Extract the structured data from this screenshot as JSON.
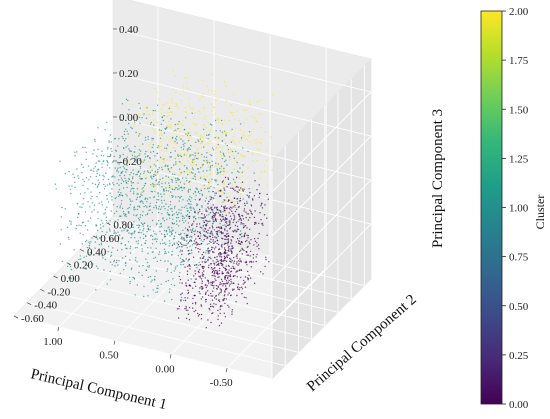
{
  "chart_data": {
    "type": "scatter",
    "projection": "3d",
    "title": "",
    "xlabel": "Principal Component 1",
    "ylabel": "Principal Component 2",
    "zlabel": "Principal Component 3",
    "x_ticks": [
      "-0.50",
      "0.00",
      "0.50",
      "1.00"
    ],
    "y_ticks": [
      "-0.60",
      "-0.40",
      "-0.20",
      "0.00",
      "0.20",
      "0.40",
      "0.60",
      "0.80"
    ],
    "z_ticks": [
      "-0.20",
      "0.00",
      "0.20",
      "0.40"
    ],
    "xlim": [
      -0.9,
      1.4
    ],
    "ylim": [
      -0.6,
      0.9
    ],
    "zlim": [
      -0.45,
      0.55
    ],
    "grid": true,
    "colormap": "viridis",
    "marker_size": "small",
    "clusters": [
      {
        "cluster": 0,
        "color": "#440154",
        "point_count_estimate": 900,
        "x_range": [
          -0.35,
          0.05
        ],
        "y_range": [
          -0.45,
          0.3
        ],
        "z_range": [
          -0.35,
          0.1
        ]
      },
      {
        "cluster": 1,
        "color": "#21918c",
        "point_count_estimate": 1400,
        "x_range": [
          0.05,
          1.2
        ],
        "y_range": [
          -0.35,
          0.75
        ],
        "z_range": [
          -0.35,
          0.2
        ]
      },
      {
        "cluster": 2,
        "color": "#fde725",
        "point_count_estimate": 500,
        "x_range": [
          -0.35,
          0.6
        ],
        "y_range": [
          -0.3,
          0.4
        ],
        "z_range": [
          0.1,
          0.5
        ]
      }
    ],
    "colorbar": {
      "label": "Cluster",
      "min": 0.0,
      "max": 2.0,
      "ticks": [
        "0.00",
        "0.25",
        "0.50",
        "0.75",
        "1.00",
        "1.25",
        "1.50",
        "1.75",
        "2.00"
      ],
      "colors": [
        "#440154",
        "#482878",
        "#3e4989",
        "#31688e",
        "#26828e",
        "#1f9e89",
        "#35b779",
        "#6ece58",
        "#b5de2b",
        "#fde725"
      ]
    }
  }
}
